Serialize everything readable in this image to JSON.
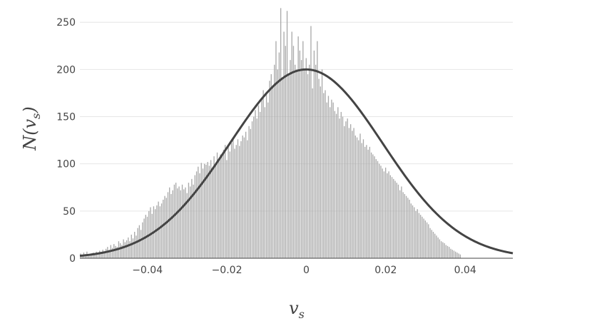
{
  "chart_data": {
    "type": "bar",
    "title": "",
    "xlabel": "v_s",
    "ylabel": "N(v_s)",
    "xlabel_display": "v",
    "xlabel_sub": "s",
    "ylabel_display": "N(v",
    "ylabel_sub": "s",
    "ylabel_close": ")",
    "xlim": [
      -0.057,
      0.052
    ],
    "ylim": [
      0,
      263
    ],
    "x_ticks": [
      -0.04,
      -0.02,
      0,
      0.02,
      0.04
    ],
    "x_tick_labels": [
      "−0.04",
      "−0.02",
      "0",
      "0.02",
      "0.04"
    ],
    "y_ticks": [
      0,
      50,
      100,
      150,
      200,
      250
    ],
    "y_tick_labels": [
      "0",
      "50",
      "100",
      "150",
      "200",
      "250"
    ],
    "grid": "horizontal",
    "legend": "none",
    "histogram": {
      "bin_start": -0.057,
      "bin_width": 0.0004,
      "counts": [
        5,
        2,
        6,
        3,
        7,
        3,
        4,
        5,
        6,
        4,
        7,
        5,
        8,
        6,
        9,
        7,
        10,
        12,
        9,
        14,
        11,
        15,
        13,
        12,
        18,
        16,
        14,
        20,
        17,
        19,
        22,
        18,
        25,
        21,
        28,
        24,
        32,
        35,
        30,
        38,
        42,
        46,
        44,
        50,
        54,
        47,
        55,
        52,
        56,
        60,
        55,
        58,
        62,
        66,
        64,
        70,
        75,
        68,
        72,
        78,
        80,
        74,
        76,
        72,
        78,
        73,
        75,
        69,
        80,
        76,
        84,
        78,
        88,
        92,
        97,
        90,
        101,
        95,
        100,
        99,
        102,
        98,
        104,
        96,
        108,
        100,
        112,
        105,
        110,
        109,
        115,
        120,
        104,
        118,
        113,
        122,
        127,
        116,
        120,
        126,
        119,
        124,
        130,
        128,
        134,
        125,
        140,
        137,
        145,
        150,
        157,
        148,
        162,
        155,
        170,
        178,
        160,
        175,
        165,
        188,
        195,
        183,
        205,
        230,
        200,
        218,
        265,
        190,
        240,
        225,
        262,
        195,
        210,
        240,
        225,
        205,
        200,
        235,
        220,
        210,
        230,
        200,
        212,
        195,
        205,
        246,
        180,
        220,
        205,
        230,
        190,
        182,
        200,
        175,
        178,
        165,
        172,
        160,
        168,
        165,
        156,
        153,
        160,
        148,
        155,
        150,
        140,
        145,
        148,
        138,
        142,
        135,
        138,
        130,
        128,
        125,
        132,
        122,
        126,
        118,
        120,
        115,
        118,
        112,
        110,
        108,
        105,
        103,
        100,
        98,
        95,
        92,
        96,
        90,
        92,
        88,
        86,
        84,
        82,
        80,
        78,
        72,
        76,
        70,
        68,
        66,
        64,
        62,
        58,
        56,
        54,
        50,
        52,
        48,
        46,
        44,
        42,
        40,
        38,
        36,
        32,
        30,
        28,
        26,
        24,
        22,
        20,
        18,
        17,
        16,
        14,
        13,
        12,
        10,
        9,
        8,
        7,
        6,
        5,
        4
      ],
      "fill_color": "#a9a9a9"
    },
    "fit_curve": {
      "type": "gaussian",
      "mean": 0.0,
      "sigma": 0.0193,
      "peak": 200,
      "color": "#444444"
    }
  }
}
